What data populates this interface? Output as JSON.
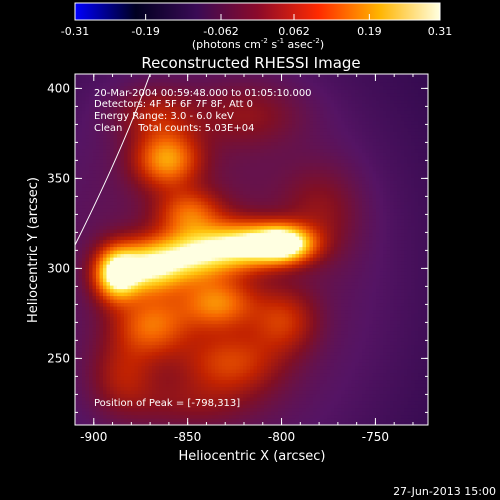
{
  "chart_data": {
    "type": "heatmap",
    "title": "Reconstructed RHESSI Image",
    "xlabel": "Heliocentric X (arcsec)",
    "ylabel": "Heliocentric Y (arcsec)",
    "xlim": [
      -910,
      -722
    ],
    "ylim": [
      213,
      408
    ],
    "x_ticks": [
      -900,
      -850,
      -800,
      -750
    ],
    "x_tick_labels": [
      "-900",
      "-850",
      "-800",
      "-750"
    ],
    "y_ticks": [
      250,
      300,
      350,
      400
    ],
    "y_tick_labels": [
      "250",
      "300",
      "350",
      "400"
    ],
    "colorbar": {
      "range": [
        -0.31,
        0.31
      ],
      "ticks": [
        -0.31,
        -0.19,
        -0.062,
        0.062,
        0.19,
        0.31
      ],
      "tick_labels": [
        "-0.31",
        "-0.19",
        "-0.062",
        "0.062",
        "0.19",
        "0.31"
      ],
      "units_main": "(photons cm",
      "units_exp1": "-2",
      "units_mid": " s",
      "units_exp2": "-1",
      "units_tail": " asec",
      "units_exp3": "-2",
      "units_close": ")",
      "colors": [
        "#0000ff",
        "#000020",
        "#3a0a55",
        "#8b0a2a",
        "#ff2a00",
        "#ffb400",
        "#ffffe0"
      ]
    },
    "annotations": {
      "time": "20-Mar-2004 00:59:48.000 to 01:05:10.000",
      "detectors": "Detectors: 4F 5F 6F 7F 8F, Att 0",
      "energy": "Energy Range: 3.0 - 6.0 keV",
      "clean": "Clean     Total counts: 5.03E+04",
      "peak": "Position of Peak = [-798,313]"
    },
    "background_level": 0.02,
    "peak": [
      -798,
      313
    ],
    "sources": [
      {
        "x": -800,
        "y": 313,
        "sx": 11,
        "sy": 7,
        "amp": 0.3
      },
      {
        "x": -822,
        "y": 312,
        "sx": 14,
        "sy": 9,
        "amp": 0.22
      },
      {
        "x": -848,
        "y": 307,
        "sx": 14,
        "sy": 10,
        "amp": 0.19
      },
      {
        "x": -872,
        "y": 300,
        "sx": 13,
        "sy": 10,
        "amp": 0.22
      },
      {
        "x": -889,
        "y": 296,
        "sx": 8,
        "sy": 10,
        "amp": 0.24
      },
      {
        "x": -862,
        "y": 360,
        "sx": 12,
        "sy": 11,
        "amp": 0.17
      },
      {
        "x": -850,
        "y": 330,
        "sx": 12,
        "sy": 9,
        "amp": 0.12
      },
      {
        "x": -835,
        "y": 280,
        "sx": 14,
        "sy": 10,
        "amp": 0.14
      },
      {
        "x": -870,
        "y": 268,
        "sx": 14,
        "sy": 12,
        "amp": 0.13
      },
      {
        "x": -828,
        "y": 247,
        "sx": 18,
        "sy": 12,
        "amp": 0.1
      },
      {
        "x": -800,
        "y": 270,
        "sx": 12,
        "sy": 12,
        "amp": 0.09
      },
      {
        "x": -868,
        "y": 385,
        "sx": 14,
        "sy": 10,
        "amp": 0.07
      },
      {
        "x": -820,
        "y": 385,
        "sx": 20,
        "sy": 12,
        "amp": 0.05
      },
      {
        "x": -780,
        "y": 330,
        "sx": 14,
        "sy": 18,
        "amp": 0.05
      },
      {
        "x": -885,
        "y": 240,
        "sx": 12,
        "sy": 14,
        "amp": 0.07
      },
      {
        "x": -850,
        "y": 225,
        "sx": 24,
        "sy": 10,
        "amp": 0.04
      }
    ],
    "limb_curve": [
      [
        -910,
        313
      ],
      [
        -885,
        365
      ],
      [
        -870,
        408
      ]
    ]
  },
  "footer": {
    "date": "27-Jun-2013 15:00"
  }
}
